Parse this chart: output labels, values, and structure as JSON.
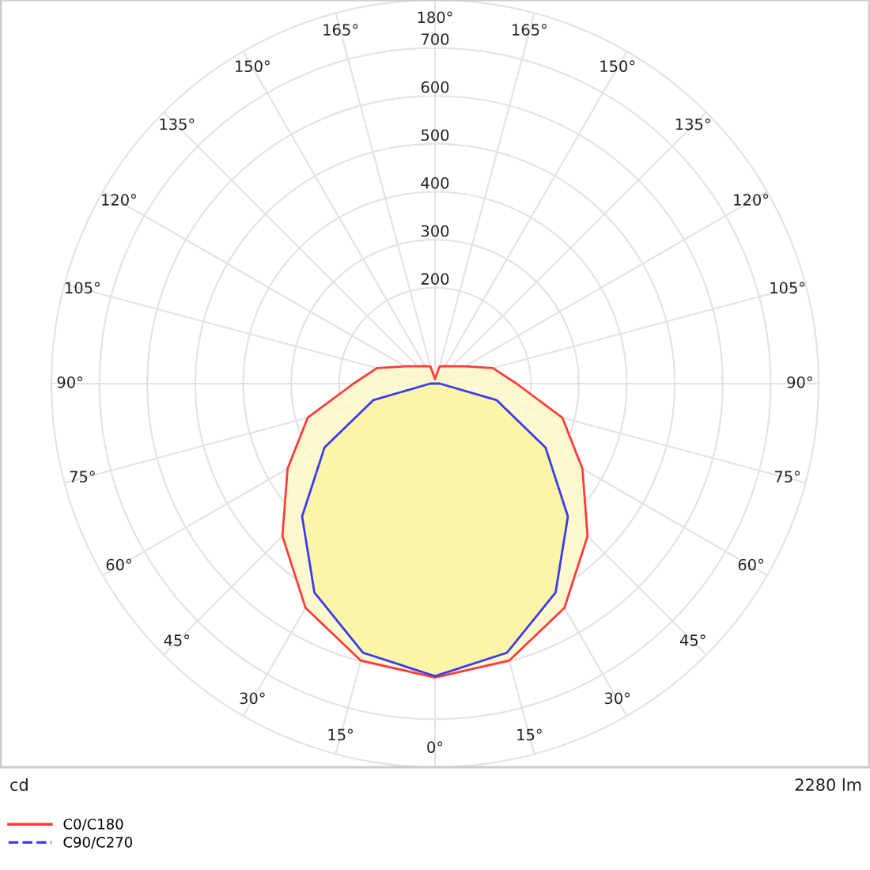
{
  "chart_data": {
    "type": "radar",
    "categories": [
      "180°",
      "165°",
      "150°",
      "135°",
      "120°",
      "105°",
      "90°",
      "75°",
      "60°",
      "45°",
      "30°",
      "15°",
      "0°",
      "15°",
      "30°",
      "45°",
      "60°",
      "75°",
      "90°",
      "105°",
      "120°",
      "135°",
      "150°",
      "165°"
    ],
    "series": [
      {
        "name": "C0/C180",
        "color": "#ff3b3b",
        "line_style": "solid",
        "values": [
          10,
          37,
          42,
          51,
          72,
          125,
          170,
          275,
          355,
          450,
          540,
          598,
          613,
          598,
          540,
          450,
          355,
          275,
          170,
          125,
          72,
          51,
          42,
          37
        ]
      },
      {
        "name": "C90/C270",
        "color": "#3a3af0",
        "line_style": "dashed",
        "values": [
          0,
          0,
          0,
          0,
          0,
          0,
          10,
          133,
          266,
          392,
          503,
          581,
          610,
          581,
          503,
          392,
          266,
          133,
          10,
          0,
          0,
          0,
          0,
          0
        ]
      }
    ],
    "ylim": [
      0,
      800
    ],
    "yticks": [
      200,
      300,
      400,
      500,
      600,
      700
    ],
    "grid": true,
    "legend": "bottom left",
    "annotations": [
      "cd",
      "2280 lm"
    ]
  }
}
